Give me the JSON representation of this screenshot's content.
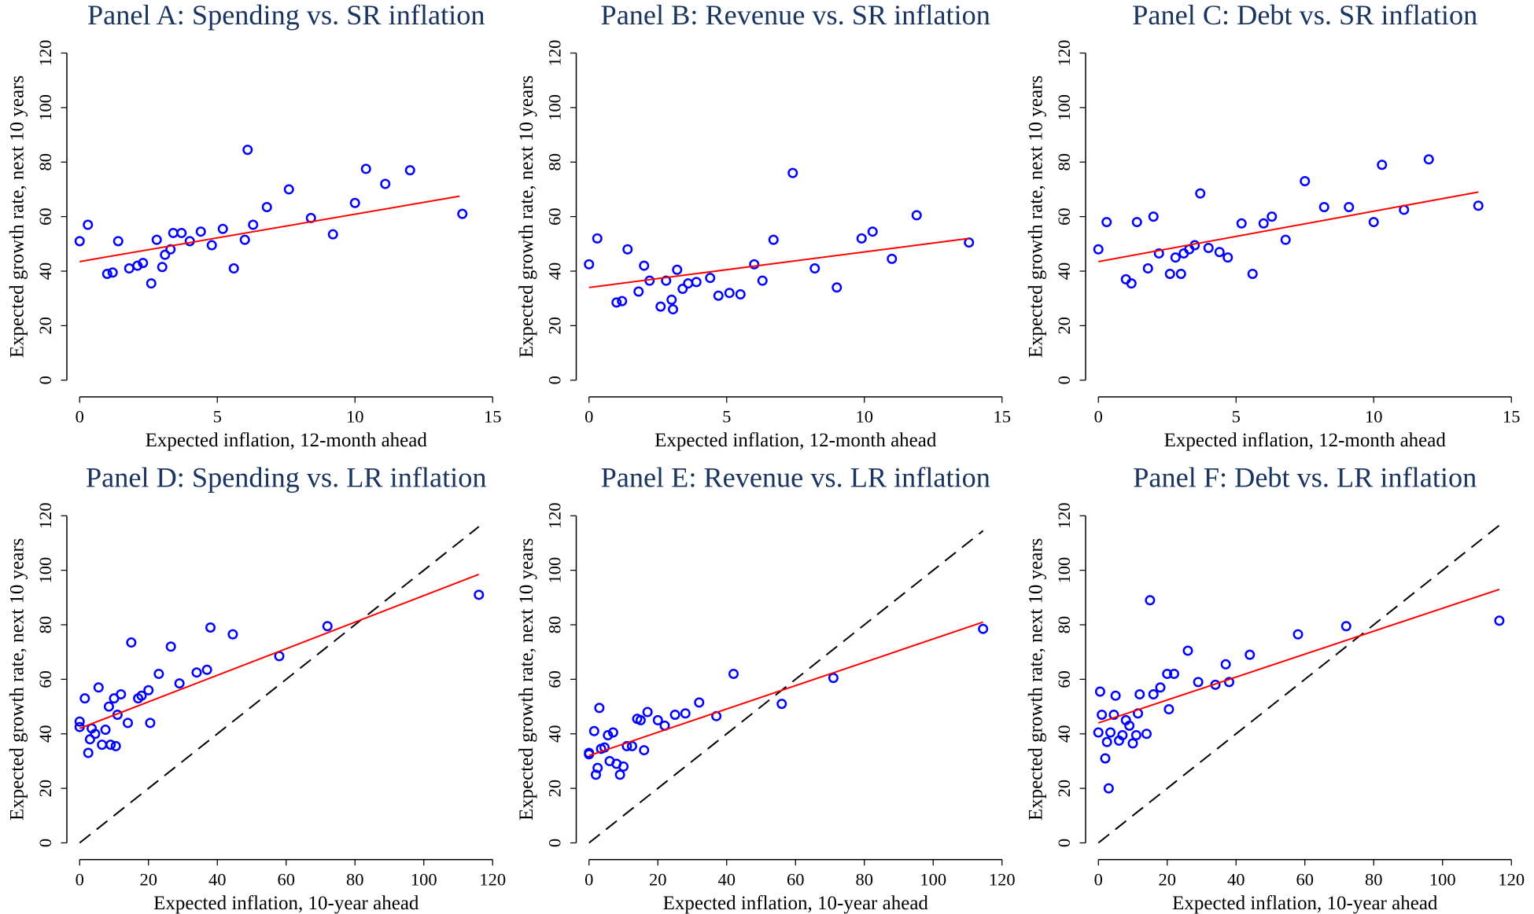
{
  "chart_data": [
    {
      "type": "scatter",
      "title": "Panel A: Spending vs. SR inflation",
      "x_label": "Expected inflation, 12-month ahead",
      "y_label": "Expected growth rate, next 10 years",
      "xlim": [
        0,
        15
      ],
      "ylim": [
        0,
        120
      ],
      "xticks": [
        0,
        5,
        10,
        15
      ],
      "yticks": [
        0,
        20,
        40,
        60,
        80,
        100,
        120
      ],
      "series": [
        {
          "color": "#0000ff",
          "x": [
            0,
            0.3,
            1,
            1.2,
            1.4,
            1.8,
            2.1,
            2.3,
            2.6,
            2.8,
            3,
            3.1,
            3.3,
            3.4,
            3.7,
            4,
            4.4,
            4.8,
            5.2,
            5.6,
            6,
            6.1,
            6.3,
            6.8,
            7.6,
            8.4,
            9.2,
            10,
            10.4,
            11.1,
            12,
            13.9
          ],
          "values": [
            51,
            57,
            39,
            39.5,
            51,
            41,
            42,
            43,
            35.5,
            51.5,
            41.5,
            46,
            48,
            54,
            54,
            51,
            54.5,
            49.5,
            55.5,
            41,
            51.5,
            84.5,
            57,
            63.5,
            70,
            59.5,
            53.5,
            65,
            77.5,
            72,
            77,
            61
          ]
        }
      ],
      "fit_line": {
        "color": "#ff0000",
        "x": [
          0,
          13.8
        ],
        "values": [
          43.5,
          67.5
        ]
      }
    },
    {
      "type": "scatter",
      "title": "Panel B: Revenue vs. SR inflation",
      "x_label": "Expected inflation, 12-month ahead",
      "y_label": "Expected growth rate, next 10 years",
      "xlim": [
        0,
        15
      ],
      "ylim": [
        0,
        120
      ],
      "xticks": [
        0,
        5,
        10,
        15
      ],
      "yticks": [
        0,
        20,
        40,
        60,
        80,
        100,
        120
      ],
      "series": [
        {
          "color": "#0000ff",
          "x": [
            0,
            0.3,
            1,
            1.2,
            1.4,
            1.8,
            2,
            2.2,
            2.6,
            2.8,
            3,
            3.05,
            3.2,
            3.4,
            3.6,
            3.9,
            4.4,
            4.7,
            5.1,
            5.5,
            6,
            6.3,
            6.7,
            7.4,
            8.2,
            9,
            9.9,
            10.3,
            11,
            11.9,
            13.8
          ],
          "values": [
            42.5,
            52,
            28.5,
            29,
            48,
            32.5,
            42,
            36.5,
            27,
            36.5,
            29.5,
            26,
            40.5,
            33.5,
            35.5,
            36,
            37.5,
            31,
            32,
            31.5,
            42.5,
            36.5,
            51.5,
            76,
            41,
            34,
            52,
            54.5,
            44.5,
            60.5,
            50.5
          ]
        }
      ],
      "fit_line": {
        "color": "#ff0000",
        "x": [
          0,
          13.8
        ],
        "values": [
          34,
          52
        ]
      }
    },
    {
      "type": "scatter",
      "title": "Panel C: Debt vs. SR inflation",
      "x_label": "Expected inflation, 12-month ahead",
      "y_label": "Expected growth rate, next 10 years",
      "xlim": [
        0,
        15
      ],
      "ylim": [
        0,
        120
      ],
      "xticks": [
        0,
        5,
        10,
        15
      ],
      "yticks": [
        0,
        20,
        40,
        60,
        80,
        100,
        120
      ],
      "series": [
        {
          "color": "#0000ff",
          "x": [
            0,
            0.3,
            1,
            1.2,
            1.4,
            1.8,
            2,
            2.2,
            2.6,
            2.8,
            3,
            3.1,
            3.3,
            3.5,
            3.7,
            4,
            4.4,
            4.7,
            5.2,
            5.6,
            6,
            6.3,
            6.8,
            7.5,
            8.2,
            9.1,
            10,
            10.3,
            11.1,
            12,
            13.8
          ],
          "values": [
            48,
            58,
            37,
            35.5,
            58,
            41,
            60,
            46.5,
            39,
            45,
            39,
            46.5,
            48,
            49.5,
            68.5,
            48.5,
            47,
            45,
            57.5,
            39,
            57.5,
            60,
            51.5,
            73,
            63.5,
            63.5,
            58,
            79,
            62.5,
            81,
            64
          ]
        }
      ],
      "fit_line": {
        "color": "#ff0000",
        "x": [
          0,
          13.8
        ],
        "values": [
          43.5,
          69
        ]
      }
    },
    {
      "type": "scatter",
      "title": "Panel D: Spending vs. LR inflation",
      "x_label": "Expected inflation, 10-year ahead",
      "y_label": "Expected growth rate, next 10 years",
      "xlim": [
        0,
        120
      ],
      "ylim": [
        0,
        120
      ],
      "xticks": [
        0,
        20,
        40,
        60,
        80,
        100,
        120
      ],
      "yticks": [
        0,
        20,
        40,
        60,
        80,
        100,
        120
      ],
      "series": [
        {
          "color": "#0000ff",
          "x": [
            0,
            0,
            1.5,
            2.5,
            3,
            3.5,
            4.5,
            5.5,
            6.5,
            7.5,
            8.5,
            9,
            10,
            10.5,
            11,
            12,
            14,
            15,
            17,
            18,
            20,
            20.5,
            23,
            26.5,
            29,
            34,
            37,
            38,
            44.5,
            58,
            72,
            116
          ],
          "values": [
            44.5,
            42.5,
            53,
            33,
            38,
            42,
            40,
            57,
            36,
            41.5,
            50,
            36,
            53,
            35.5,
            47,
            54.5,
            44,
            73.5,
            53,
            54,
            56,
            44,
            62,
            72,
            58.5,
            62.5,
            63.5,
            79,
            76.5,
            68.5,
            79.5,
            91
          ]
        }
      ],
      "fit_line": {
        "color": "#ff0000",
        "x": [
          0,
          116
        ],
        "values": [
          42,
          98.5
        ]
      },
      "reference_line": {
        "color": "#000000",
        "x": [
          0,
          116
        ],
        "values": [
          0,
          116
        ]
      }
    },
    {
      "type": "scatter",
      "title": "Panel E: Revenue vs. LR inflation",
      "x_label": "Expected inflation, 10-year ahead",
      "y_label": "Expected growth rate, next 10 years",
      "xlim": [
        0,
        120
      ],
      "ylim": [
        0,
        120
      ],
      "xticks": [
        0,
        20,
        40,
        60,
        80,
        100,
        120
      ],
      "yticks": [
        0,
        20,
        40,
        60,
        80,
        100,
        120
      ],
      "series": [
        {
          "color": "#0000ff",
          "x": [
            0,
            0,
            1.5,
            2,
            2.5,
            3,
            3.5,
            4.5,
            5.5,
            6,
            7,
            8,
            9,
            10,
            11,
            12.5,
            14,
            15,
            16,
            17,
            20,
            22,
            25,
            28,
            32,
            37,
            42,
            56,
            71,
            114.5
          ],
          "values": [
            33,
            32.5,
            41,
            25,
            27.5,
            49.5,
            34.5,
            35,
            39.5,
            30,
            40.5,
            29,
            25,
            28,
            35.5,
            35.5,
            45.5,
            45,
            34,
            48,
            45,
            43,
            47,
            47.5,
            51.5,
            46.5,
            62,
            51,
            60.5,
            78.5
          ]
        }
      ],
      "fit_line": {
        "color": "#ff0000",
        "x": [
          0,
          114.5
        ],
        "values": [
          32,
          81
        ]
      },
      "reference_line": {
        "color": "#000000",
        "x": [
          0,
          114.5
        ],
        "values": [
          0,
          114.5
        ]
      }
    },
    {
      "type": "scatter",
      "title": "Panel F: Debt vs. LR inflation",
      "x_label": "Expected inflation, 10-year ahead",
      "y_label": "Expected growth rate, next 10 years",
      "xlim": [
        0,
        120
      ],
      "ylim": [
        0,
        120
      ],
      "xticks": [
        0,
        20,
        40,
        60,
        80,
        100,
        120
      ],
      "yticks": [
        0,
        20,
        40,
        60,
        80,
        100,
        120
      ],
      "series": [
        {
          "color": "#0000ff",
          "x": [
            0,
            0.5,
            1,
            2,
            2.5,
            3,
            3.5,
            4.5,
            5,
            6,
            7,
            8,
            9,
            10,
            11,
            11.5,
            12,
            14,
            15,
            16,
            18,
            20,
            20.5,
            22,
            26,
            29,
            34,
            37,
            38,
            44,
            58,
            72,
            116.5
          ],
          "values": [
            40.5,
            55.5,
            47,
            31,
            37,
            20,
            40.5,
            47,
            54,
            37.5,
            39.5,
            45,
            43,
            36.5,
            39.5,
            47.5,
            54.5,
            40,
            89,
            54.5,
            57,
            62,
            49,
            62,
            70.5,
            59,
            58,
            65.5,
            59,
            69,
            76.5,
            79.5,
            81.5
          ]
        }
      ],
      "fit_line": {
        "color": "#ff0000",
        "x": [
          0,
          116.5
        ],
        "values": [
          44,
          93
        ]
      },
      "reference_line": {
        "color": "#000000",
        "x": [
          0,
          116.5
        ],
        "values": [
          0,
          116.5
        ]
      }
    }
  ]
}
